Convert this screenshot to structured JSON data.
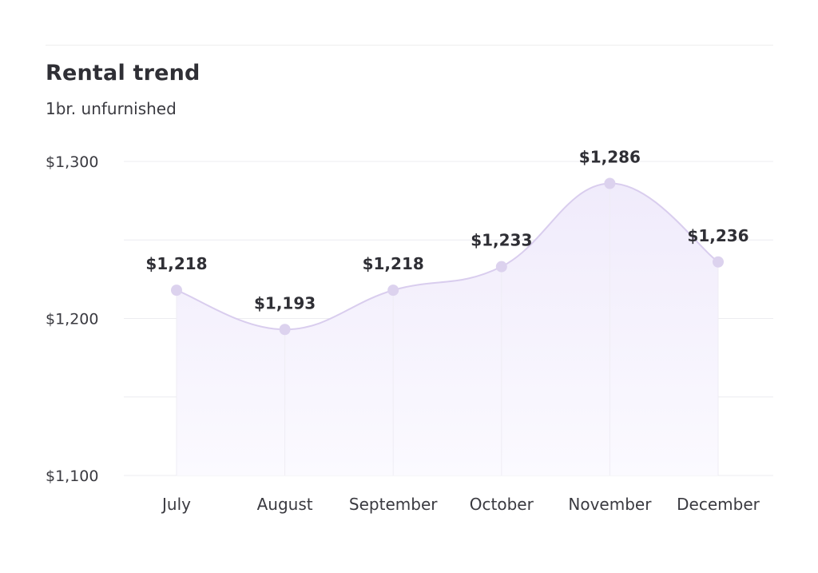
{
  "title": "Rental trend",
  "subtitle": "1br. unfurnished",
  "chart_data": {
    "type": "area",
    "categories": [
      "July",
      "August",
      "September",
      "October",
      "November",
      "December"
    ],
    "values": [
      1218,
      1193,
      1218,
      1233,
      1286,
      1236
    ],
    "data_labels": [
      "$1,218",
      "$1,193",
      "$1,218",
      "$1,233",
      "$1,286",
      "$1,236"
    ],
    "y_ticks": [
      1100,
      1200,
      1300
    ],
    "y_tick_labels": [
      "$1,100",
      "$1,200",
      "$1,300"
    ],
    "ylim": [
      1100,
      1300
    ],
    "grid": true,
    "colors": {
      "line": "#d9cdee",
      "marker": "#dcd2ee",
      "fill_top": "#f0ebfb",
      "fill_bottom": "#fbfaff",
      "grid": "#ececf0"
    }
  }
}
